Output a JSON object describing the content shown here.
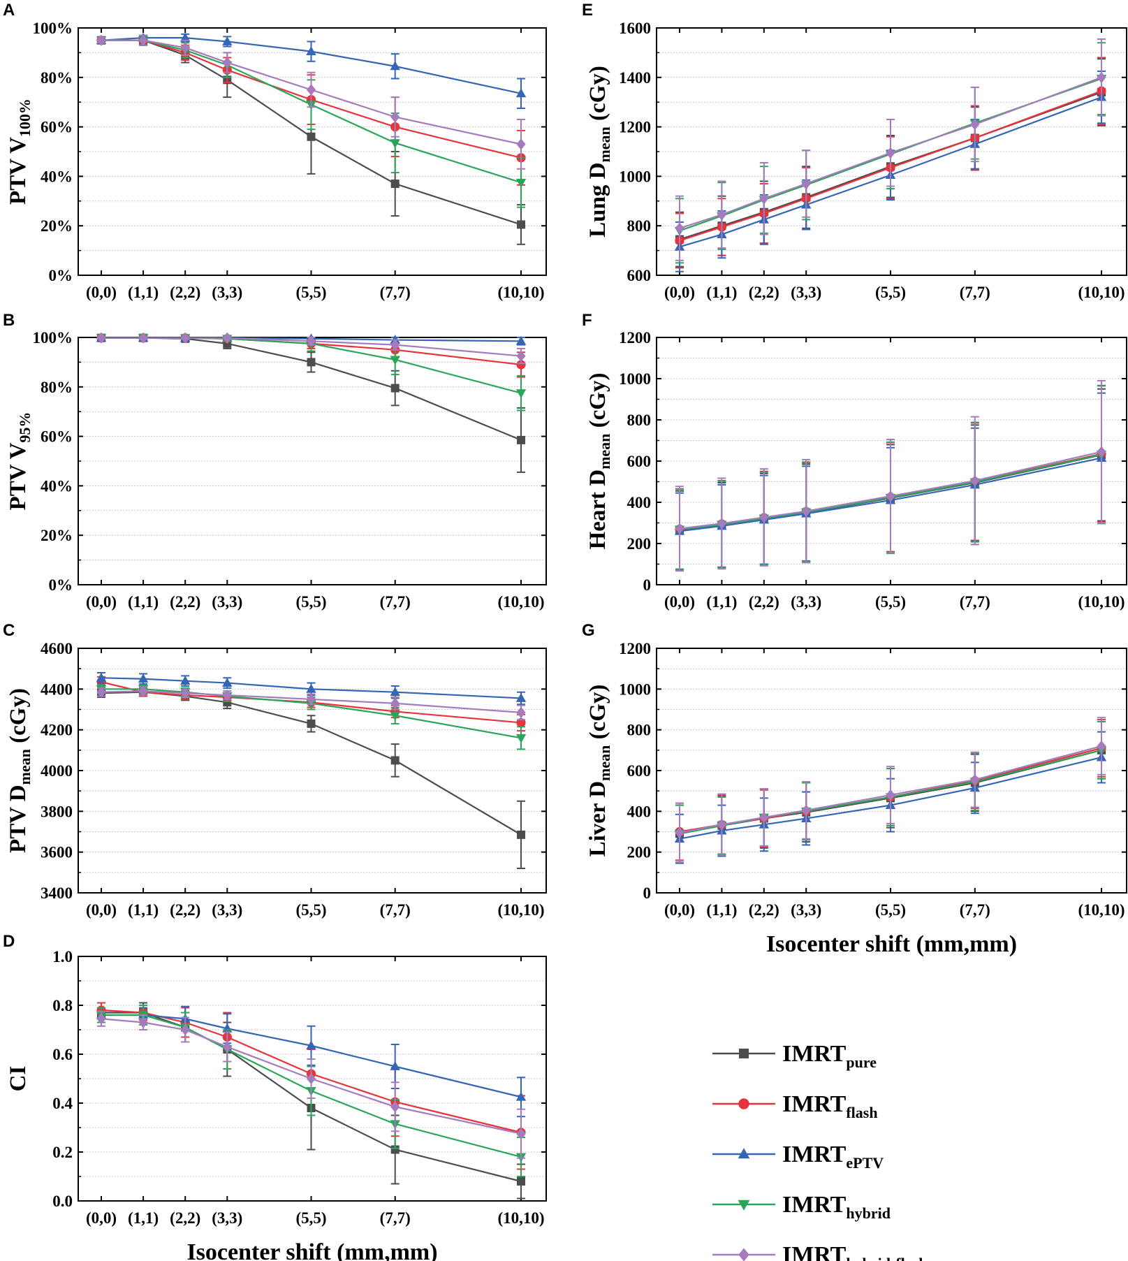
{
  "x_axis_title": "Isocenter shift (mm,mm)",
  "x_tick_labels": [
    "(0,0)",
    "(1,1)",
    "(2,2)",
    "(3,3)",
    "(5,5)",
    "(7,7)",
    "(10,10)"
  ],
  "legend": [
    {
      "base": "IMRT",
      "sub": "pure",
      "color": "#4d4d4d",
      "marker": "square"
    },
    {
      "base": "IMRT",
      "sub": "flash",
      "color": "#e8323c",
      "marker": "circle"
    },
    {
      "base": "IMRT",
      "sub": "ePTV",
      "color": "#3565b5",
      "marker": "triangle-up"
    },
    {
      "base": "IMRT",
      "sub": "hybrid",
      "color": "#2aa55a",
      "marker": "triangle-down"
    },
    {
      "base": "IMRT",
      "sub": "hybrid-flash",
      "color": "#a57bbd",
      "marker": "diamond"
    }
  ],
  "chart_data": [
    {
      "panel": "A",
      "type": "line",
      "ylabel": "PTV V",
      "ylabel_sub": "100%",
      "x": [
        0,
        1,
        2,
        3,
        5,
        7,
        10
      ],
      "xlabel": "",
      "ylim": [
        0,
        100
      ],
      "yticks": [
        0,
        20,
        40,
        60,
        80,
        100
      ],
      "ytick_labels": [
        "0%",
        "20%",
        "40%",
        "60%",
        "80%",
        "100%"
      ],
      "series": [
        {
          "name": "IMRTpure",
          "values": [
            95,
            95,
            89,
            79,
            56,
            37,
            20.5
          ],
          "errors": [
            1,
            2,
            3,
            7,
            15,
            13,
            8
          ]
        },
        {
          "name": "IMRTflash",
          "values": [
            95,
            95,
            90,
            83,
            71,
            60,
            47.5
          ],
          "errors": [
            1,
            2,
            3,
            5,
            10,
            12,
            11
          ]
        },
        {
          "name": "IMRTePTV",
          "values": [
            95,
            96,
            96,
            94.5,
            90.5,
            84.5,
            73.5
          ],
          "errors": [
            1,
            1,
            1.5,
            2,
            4,
            5,
            6
          ]
        },
        {
          "name": "IMRThybrid",
          "values": [
            95,
            95,
            91,
            85,
            69,
            53.5,
            37.5
          ],
          "errors": [
            1,
            2,
            3,
            5,
            10,
            12,
            10
          ]
        },
        {
          "name": "IMRThybrid-flash",
          "values": [
            95,
            95,
            92,
            86,
            75,
            64,
            53
          ],
          "errors": [
            1,
            2,
            3,
            4,
            7,
            8,
            10
          ]
        }
      ]
    },
    {
      "panel": "B",
      "type": "line",
      "ylabel": "PTV V",
      "ylabel_sub": "95%",
      "x": [
        0,
        1,
        2,
        3,
        5,
        7,
        10
      ],
      "xlabel": "",
      "ylim": [
        0,
        100
      ],
      "yticks": [
        0,
        20,
        40,
        60,
        80,
        100
      ],
      "ytick_labels": [
        "0%",
        "20%",
        "40%",
        "60%",
        "80%",
        "100%"
      ],
      "series": [
        {
          "name": "IMRTpure",
          "values": [
            99.8,
            99.8,
            99.5,
            97.5,
            90,
            79.5,
            58.5
          ],
          "errors": [
            0.5,
            0.5,
            1,
            2,
            4,
            7,
            13
          ]
        },
        {
          "name": "IMRTflash",
          "values": [
            99.8,
            99.8,
            99.8,
            99.5,
            97.5,
            95,
            89
          ],
          "errors": [
            0.5,
            0.5,
            0.5,
            1,
            2,
            3,
            5
          ]
        },
        {
          "name": "IMRTePTV",
          "values": [
            99.8,
            99.8,
            99.8,
            99.8,
            99.5,
            99,
            98.5
          ],
          "errors": [
            0.3,
            0.3,
            0.3,
            0.3,
            0.5,
            1,
            1.5
          ]
        },
        {
          "name": "IMRThybrid",
          "values": [
            99.8,
            99.8,
            99.8,
            99.5,
            97.5,
            91,
            77.5
          ],
          "errors": [
            0.5,
            0.5,
            0.5,
            1,
            3,
            6,
            7
          ]
        },
        {
          "name": "IMRThybrid-flash",
          "values": [
            99.8,
            99.8,
            99.8,
            99.8,
            98.5,
            97,
            92.5
          ],
          "errors": [
            0.3,
            0.3,
            0.5,
            0.5,
            1.5,
            2,
            3
          ]
        }
      ]
    },
    {
      "panel": "C",
      "type": "line",
      "ylabel": "PTV D",
      "ylabel_sub": "mean",
      "ylabel_unit": " (cGy)",
      "x": [
        0,
        1,
        2,
        3,
        5,
        7,
        10
      ],
      "xlabel": "",
      "ylim": [
        3400,
        4600
      ],
      "yticks": [
        3400,
        3600,
        3800,
        4000,
        4200,
        4400,
        4600
      ],
      "ytick_labels": [
        "3400",
        "3600",
        "3800",
        "4000",
        "4200",
        "4400",
        "4600"
      ],
      "series": [
        {
          "name": "IMRTpure",
          "values": [
            4380,
            4385,
            4365,
            4335,
            4230,
            4050,
            3685
          ],
          "errors": [
            20,
            20,
            20,
            30,
            40,
            80,
            165
          ]
        },
        {
          "name": "IMRTflash",
          "values": [
            4435,
            4385,
            4370,
            4360,
            4335,
            4290,
            4235
          ],
          "errors": [
            25,
            20,
            20,
            20,
            25,
            30,
            40
          ]
        },
        {
          "name": "IMRTePTV",
          "values": [
            4455,
            4450,
            4440,
            4430,
            4400,
            4385,
            4355
          ],
          "errors": [
            25,
            25,
            25,
            25,
            30,
            30,
            30
          ]
        },
        {
          "name": "IMRThybrid",
          "values": [
            4400,
            4400,
            4385,
            4365,
            4330,
            4270,
            4160
          ],
          "errors": [
            20,
            20,
            20,
            25,
            30,
            40,
            55
          ]
        },
        {
          "name": "IMRThybrid-flash",
          "values": [
            4385,
            4390,
            4380,
            4370,
            4350,
            4330,
            4285
          ],
          "errors": [
            20,
            20,
            20,
            20,
            25,
            30,
            35
          ]
        }
      ]
    },
    {
      "panel": "D",
      "type": "line",
      "ylabel": "CI",
      "x": [
        0,
        1,
        2,
        3,
        5,
        7,
        10
      ],
      "xlabel": "Isocenter shift (mm,mm)",
      "ylim": [
        0,
        1
      ],
      "yticks": [
        0,
        0.2,
        0.4,
        0.6,
        0.8,
        1.0
      ],
      "ytick_labels": [
        "0.0",
        "0.2",
        "0.4",
        "0.6",
        "0.8",
        "1.0"
      ],
      "series": [
        {
          "name": "IMRTpure",
          "values": [
            0.77,
            0.77,
            0.71,
            0.62,
            0.38,
            0.21,
            0.08
          ],
          "errors": [
            0.04,
            0.04,
            0.06,
            0.11,
            0.17,
            0.14,
            0.07
          ]
        },
        {
          "name": "IMRTflash",
          "values": [
            0.78,
            0.77,
            0.73,
            0.67,
            0.52,
            0.405,
            0.28
          ],
          "errors": [
            0.03,
            0.03,
            0.06,
            0.1,
            0.1,
            0.14,
            0.15
          ]
        },
        {
          "name": "IMRTePTV",
          "values": [
            0.76,
            0.76,
            0.745,
            0.705,
            0.635,
            0.55,
            0.425
          ],
          "errors": [
            0.03,
            0.03,
            0.05,
            0.06,
            0.08,
            0.09,
            0.08
          ]
        },
        {
          "name": "IMRThybrid",
          "values": [
            0.76,
            0.76,
            0.71,
            0.62,
            0.45,
            0.315,
            0.18
          ],
          "errors": [
            0.03,
            0.04,
            0.06,
            0.08,
            0.1,
            0.1,
            0.08
          ]
        },
        {
          "name": "IMRThybrid-flash",
          "values": [
            0.745,
            0.73,
            0.7,
            0.63,
            0.5,
            0.385,
            0.275
          ],
          "errors": [
            0.03,
            0.03,
            0.05,
            0.06,
            0.08,
            0.1,
            0.1
          ]
        }
      ]
    },
    {
      "panel": "E",
      "type": "line",
      "ylabel": "Lung D",
      "ylabel_sub": "mean",
      "ylabel_unit": " (cGy)",
      "x": [
        0,
        1,
        2,
        3,
        5,
        7,
        10
      ],
      "xlabel": "",
      "ylim": [
        600,
        1600
      ],
      "yticks": [
        600,
        800,
        1000,
        1200,
        1400,
        1600
      ],
      "ytick_labels": [
        "600",
        "800",
        "1000",
        "1200",
        "1400",
        "1600"
      ],
      "series": [
        {
          "name": "IMRTpure",
          "values": [
            745,
            800,
            855,
            915,
            1040,
            1155,
            1340
          ],
          "errors": [
            110,
            120,
            125,
            125,
            125,
            125,
            135
          ]
        },
        {
          "name": "IMRTflash",
          "values": [
            740,
            795,
            850,
            910,
            1035,
            1155,
            1345
          ],
          "errors": [
            110,
            115,
            120,
            125,
            125,
            130,
            135
          ]
        },
        {
          "name": "IMRTePTV",
          "values": [
            715,
            765,
            825,
            885,
            1005,
            1130,
            1320
          ],
          "errors": [
            100,
            95,
            100,
            100,
            100,
            100,
            105
          ]
        },
        {
          "name": "IMRThybrid",
          "values": [
            780,
            840,
            905,
            965,
            1090,
            1215,
            1395
          ],
          "errors": [
            130,
            135,
            135,
            140,
            140,
            145,
            145
          ]
        },
        {
          "name": "IMRThybrid-flash",
          "values": [
            790,
            845,
            910,
            970,
            1095,
            1210,
            1400
          ],
          "errors": [
            130,
            135,
            145,
            135,
            135,
            150,
            155
          ]
        }
      ]
    },
    {
      "panel": "F",
      "type": "line",
      "ylabel": "Heart D",
      "ylabel_sub": "mean",
      "ylabel_unit": " (cGy)",
      "x": [
        0,
        1,
        2,
        3,
        5,
        7,
        10
      ],
      "xlabel": "",
      "ylim": [
        0,
        1200
      ],
      "yticks": [
        0,
        200,
        400,
        600,
        800,
        1000,
        1200
      ],
      "ytick_labels": [
        "0",
        "200",
        "400",
        "600",
        "800",
        "1000",
        "1200"
      ],
      "series": [
        {
          "name": "IMRTpure",
          "values": [
            265,
            290,
            320,
            350,
            420,
            495,
            630
          ],
          "errors": [
            190,
            205,
            220,
            235,
            260,
            280,
            320
          ]
        },
        {
          "name": "IMRTflash",
          "values": [
            270,
            295,
            325,
            355,
            425,
            500,
            635
          ],
          "errors": [
            195,
            210,
            225,
            240,
            265,
            285,
            330
          ]
        },
        {
          "name": "IMRTePTV",
          "values": [
            260,
            285,
            315,
            345,
            410,
            485,
            615
          ],
          "errors": [
            185,
            200,
            215,
            230,
            255,
            275,
            315
          ]
        },
        {
          "name": "IMRThybrid",
          "values": [
            268,
            292,
            322,
            352,
            422,
            498,
            632
          ],
          "errors": [
            195,
            210,
            225,
            240,
            270,
            290,
            335
          ]
        },
        {
          "name": "IMRThybrid-flash",
          "values": [
            272,
            297,
            327,
            357,
            430,
            505,
            645
          ],
          "errors": [
            205,
            220,
            235,
            250,
            275,
            310,
            345
          ]
        }
      ]
    },
    {
      "panel": "G",
      "type": "line",
      "ylabel": "Liver D",
      "ylabel_sub": "mean",
      "ylabel_unit": " (cGy)",
      "x": [
        0,
        1,
        2,
        3,
        5,
        7,
        10
      ],
      "xlabel": "Isocenter shift (mm,mm)",
      "ylim": [
        0,
        1200
      ],
      "yticks": [
        0,
        200,
        400,
        600,
        800,
        1000,
        1200
      ],
      "ytick_labels": [
        "0",
        "200",
        "400",
        "600",
        "800",
        "1000",
        "1200"
      ],
      "series": [
        {
          "name": "IMRTpure",
          "values": [
            290,
            330,
            365,
            395,
            465,
            540,
            700
          ],
          "errors": [
            140,
            145,
            145,
            145,
            145,
            140,
            140
          ]
        },
        {
          "name": "IMRTflash",
          "values": [
            300,
            335,
            365,
            400,
            470,
            550,
            710
          ],
          "errors": [
            140,
            145,
            140,
            140,
            140,
            135,
            140
          ]
        },
        {
          "name": "IMRTePTV",
          "values": [
            265,
            305,
            335,
            365,
            430,
            515,
            665
          ],
          "errors": [
            120,
            125,
            130,
            130,
            130,
            125,
            125
          ]
        },
        {
          "name": "IMRThybrid",
          "values": [
            290,
            330,
            370,
            400,
            470,
            545,
            700
          ],
          "errors": [
            140,
            140,
            140,
            140,
            140,
            140,
            140
          ]
        },
        {
          "name": "IMRThybrid-flash",
          "values": [
            295,
            335,
            370,
            405,
            480,
            555,
            720
          ],
          "errors": [
            145,
            150,
            140,
            140,
            140,
            135,
            140
          ]
        }
      ]
    }
  ]
}
